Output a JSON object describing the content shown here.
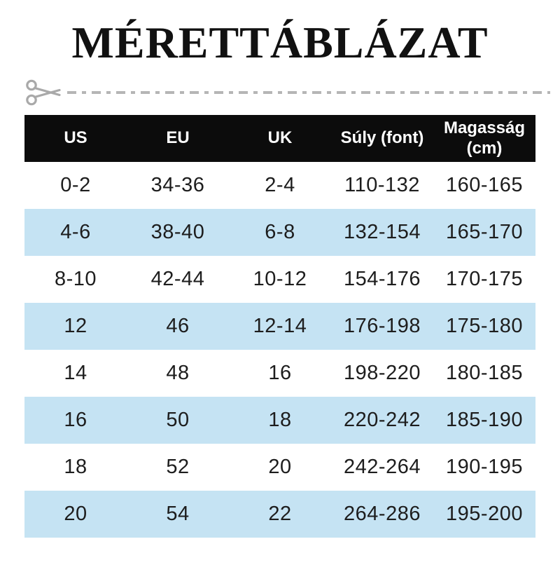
{
  "title": "MÉRETTÁBLÁZAT",
  "cut_line": {
    "icon": "scissors-icon",
    "color": "#b5b5b5"
  },
  "table": {
    "headers": [
      "US",
      "EU",
      "UK",
      "Súly (font)",
      "Magasság (cm)"
    ],
    "rows": [
      [
        "0-2",
        "34-36",
        "2-4",
        "110-132",
        "160-165"
      ],
      [
        "4-6",
        "38-40",
        "6-8",
        "132-154",
        "165-170"
      ],
      [
        "8-10",
        "42-44",
        "10-12",
        "154-176",
        "170-175"
      ],
      [
        "12",
        "46",
        "12-14",
        "176-198",
        "175-180"
      ],
      [
        "14",
        "48",
        "16",
        "198-220",
        "180-185"
      ],
      [
        "16",
        "50",
        "18",
        "220-242",
        "185-190"
      ],
      [
        "18",
        "52",
        "20",
        "242-264",
        "190-195"
      ],
      [
        "20",
        "54",
        "22",
        "264-286",
        "195-200"
      ]
    ]
  },
  "chart_data": {
    "type": "table",
    "title": "MÉRETTÁBLÁZAT",
    "columns": [
      "US",
      "EU",
      "UK",
      "Súly (font)",
      "Magasság (cm)"
    ],
    "rows": [
      [
        "0-2",
        "34-36",
        "2-4",
        "110-132",
        "160-165"
      ],
      [
        "4-6",
        "38-40",
        "6-8",
        "132-154",
        "165-170"
      ],
      [
        "8-10",
        "42-44",
        "10-12",
        "154-176",
        "170-175"
      ],
      [
        "12",
        "46",
        "12-14",
        "176-198",
        "175-180"
      ],
      [
        "14",
        "48",
        "16",
        "198-220",
        "180-185"
      ],
      [
        "16",
        "50",
        "18",
        "220-242",
        "185-190"
      ],
      [
        "18",
        "52",
        "20",
        "242-264",
        "190-195"
      ],
      [
        "20",
        "54",
        "22",
        "264-286",
        "195-200"
      ]
    ]
  },
  "colors": {
    "header_bg": "#0c0c0c",
    "header_text": "#ffffff",
    "row_alt_bg": "#c5e3f3",
    "row_plain_bg": "#ffffff",
    "cell_text": "#1d1d1d",
    "title_text": "#111111",
    "cutline_gray": "#b5b5b5"
  }
}
